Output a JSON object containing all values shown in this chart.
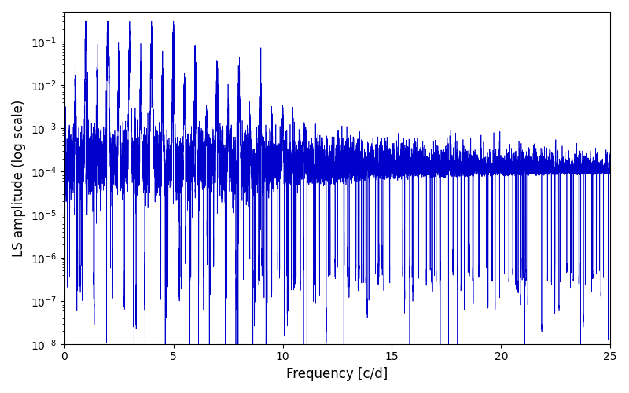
{
  "title": "",
  "xlabel": "Frequency [c/d]",
  "ylabel": "LS amplitude (log scale)",
  "xlim": [
    0,
    25
  ],
  "ylim": [
    1e-08,
    0.5
  ],
  "line_color": "#0000cc",
  "line_width": 0.5,
  "freq_min": 0.0,
  "freq_max": 25.0,
  "num_points": 10000,
  "background_color": "#ffffff",
  "figsize": [
    8.0,
    5.0
  ],
  "dpi": 100
}
